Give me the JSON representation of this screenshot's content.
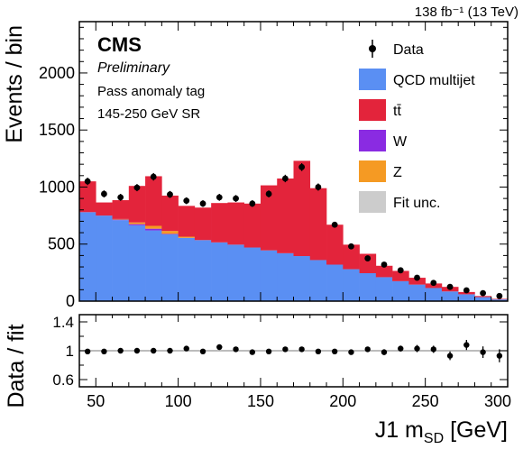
{
  "header": {
    "lumi_label": "138 fb⁻¹ (13 TeV)"
  },
  "labels": {
    "cms": "CMS",
    "preliminary": "Preliminary",
    "selection_1": "Pass anomaly tag",
    "selection_2": "145-250 GeV SR"
  },
  "colors": {
    "qcd": "#5a8ff3",
    "ttbar": "#e3243b",
    "w": "#8a2be2",
    "z": "#f59a23",
    "fit_unc": "#cccccc",
    "data": "#000000"
  },
  "chart_data": [
    {
      "type": "bar",
      "stacked": true,
      "title": "",
      "xlabel": "",
      "ylabel": "Events / bin",
      "xlim": [
        40,
        300
      ],
      "ylim": [
        0,
        2450
      ],
      "y_ticks": [
        0,
        500,
        1000,
        1500,
        2000
      ],
      "x_ticks": [
        50,
        100,
        150,
        200,
        250,
        300
      ],
      "legend_position": "top-right",
      "legend": [
        "Data",
        "QCD multijet",
        "tt̄",
        "W",
        "Z",
        "Fit unc."
      ],
      "bin_edges": [
        40,
        50,
        60,
        70,
        80,
        90,
        100,
        110,
        120,
        130,
        140,
        150,
        160,
        170,
        180,
        190,
        200,
        210,
        220,
        230,
        240,
        250,
        260,
        270,
        280,
        290,
        300
      ],
      "series": [
        {
          "name": "QCD multijet",
          "values": [
            780,
            750,
            710,
            665,
            620,
            585,
            555,
            535,
            515,
            495,
            470,
            445,
            420,
            395,
            360,
            320,
            280,
            245,
            210,
            175,
            145,
            115,
            85,
            60,
            35,
            15
          ]
        },
        {
          "name": "W",
          "values": [
            0,
            0,
            5,
            10,
            15,
            5,
            0,
            0,
            0,
            0,
            0,
            0,
            0,
            0,
            0,
            0,
            0,
            0,
            0,
            0,
            0,
            0,
            0,
            0,
            0,
            0
          ]
        },
        {
          "name": "Z",
          "values": [
            0,
            0,
            5,
            15,
            25,
            25,
            10,
            0,
            0,
            0,
            0,
            0,
            0,
            0,
            0,
            0,
            0,
            0,
            0,
            0,
            0,
            0,
            0,
            0,
            0,
            0
          ]
        },
        {
          "name": "tt̄",
          "values": [
            270,
            115,
            165,
            320,
            435,
            310,
            270,
            285,
            345,
            370,
            385,
            570,
            655,
            835,
            630,
            350,
            215,
            170,
            100,
            90,
            60,
            40,
            40,
            20,
            10,
            5
          ]
        },
        {
          "name": "Data",
          "x": [
            45,
            55,
            65,
            75,
            85,
            95,
            105,
            115,
            125,
            135,
            145,
            155,
            165,
            175,
            185,
            195,
            205,
            215,
            225,
            235,
            245,
            255,
            265,
            275,
            285,
            295
          ],
          "values": [
            1050,
            940,
            910,
            995,
            1090,
            935,
            880,
            855,
            910,
            900,
            855,
            940,
            1075,
            1175,
            1000,
            670,
            480,
            375,
            320,
            270,
            205,
            160,
            125,
            95,
            70,
            45
          ]
        }
      ]
    },
    {
      "type": "scatter",
      "title": "",
      "xlabel": "J1 m_SD [GeV]",
      "ylabel": "Data / fit",
      "xlim": [
        40,
        300
      ],
      "ylim": [
        0.5,
        1.5
      ],
      "y_ticks": [
        0.6,
        1,
        1.4
      ],
      "x_ticks": [
        50,
        100,
        150,
        200,
        250,
        300
      ],
      "x": [
        45,
        55,
        65,
        75,
        85,
        95,
        105,
        115,
        125,
        135,
        145,
        155,
        165,
        175,
        185,
        195,
        205,
        215,
        225,
        235,
        245,
        255,
        265,
        275,
        285,
        295
      ],
      "values": [
        0.99,
        0.99,
        1.0,
        1.0,
        1.0,
        1.0,
        1.03,
        0.99,
        1.05,
        1.02,
        0.98,
        0.99,
        1.02,
        1.02,
        0.99,
        0.99,
        0.98,
        1.02,
        0.98,
        1.03,
        1.03,
        1.02,
        0.93,
        1.08,
        0.98,
        0.93
      ],
      "errors": [
        0.02,
        0.02,
        0.02,
        0.02,
        0.02,
        0.02,
        0.02,
        0.02,
        0.02,
        0.02,
        0.02,
        0.02,
        0.02,
        0.02,
        0.02,
        0.02,
        0.03,
        0.03,
        0.04,
        0.04,
        0.05,
        0.05,
        0.06,
        0.07,
        0.08,
        0.09
      ]
    }
  ]
}
